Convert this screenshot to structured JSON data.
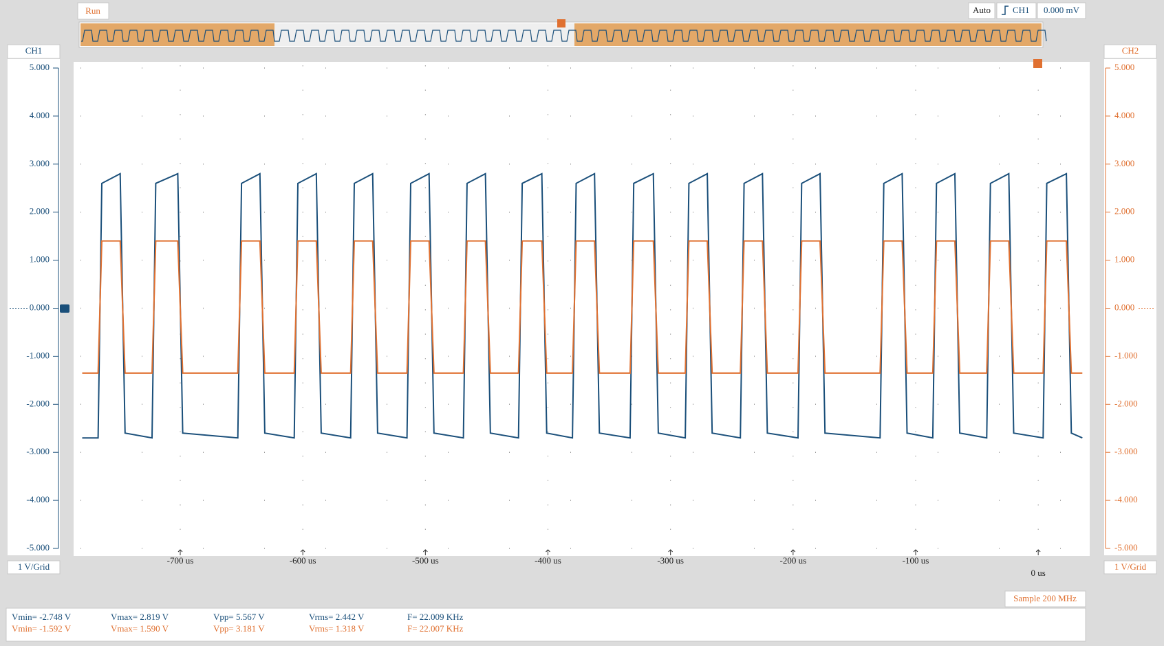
{
  "status": "Run",
  "trigger": {
    "mode": "Auto",
    "source": "CH1",
    "level": "0.000 mV"
  },
  "sample": "Sample 200 MHz",
  "scale_labels": [
    "1 V/Grid",
    "1 V/Grid"
  ],
  "measurements": [
    [
      "Vmin= -2.748 V",
      "Vmax= 2.819 V",
      "Vpp= 5.567 V",
      "Vrms= 2.442 V",
      "F= 22.009 KHz"
    ],
    [
      "Vmin= -1.592 V",
      "Vmax= 1.590 V",
      "Vpp= 3.181 V",
      "Vrms= 1.318 V",
      "F= 22.007 KHz"
    ]
  ],
  "chart_data": {
    "type": "line",
    "x": [
      -780,
      -767,
      -764,
      -749,
      -745,
      -723,
      -720,
      -702,
      -698,
      -653,
      -650,
      -635,
      -631,
      -607,
      -604,
      -589,
      -585,
      -561,
      -558,
      -543,
      -539,
      -515,
      -512,
      -497,
      -493,
      -469,
      -466,
      -451,
      -447,
      -424,
      -421,
      -405,
      -401,
      -380,
      -377,
      -362,
      -358,
      -333,
      -330,
      -314,
      -310,
      -288,
      -285,
      -270,
      -266,
      -243,
      -240,
      -225,
      -221,
      -196,
      -193,
      -178,
      -174,
      -129,
      -126,
      -111,
      -107,
      -86,
      -83,
      -68,
      -64,
      -42,
      -39,
      -24,
      -20,
      4,
      7,
      23,
      27,
      36
    ],
    "series": [
      {
        "name": "CH1",
        "color": "#1a4f7a",
        "values": [
          -2.7,
          -2.7,
          2.6,
          2.8,
          -2.6,
          -2.7,
          2.6,
          2.8,
          -2.6,
          -2.7,
          2.6,
          2.8,
          -2.6,
          -2.7,
          2.6,
          2.8,
          -2.6,
          -2.7,
          2.6,
          2.8,
          -2.6,
          -2.7,
          2.6,
          2.8,
          -2.6,
          -2.7,
          2.6,
          2.8,
          -2.6,
          -2.7,
          2.6,
          2.8,
          -2.6,
          -2.7,
          2.6,
          2.8,
          -2.6,
          -2.7,
          2.6,
          2.8,
          -2.6,
          -2.7,
          2.6,
          2.8,
          -2.6,
          -2.7,
          2.6,
          2.8,
          -2.6,
          -2.7,
          2.6,
          2.8,
          -2.6,
          -2.7,
          2.6,
          2.8,
          -2.6,
          -2.7,
          2.6,
          2.8,
          -2.6,
          -2.7,
          2.6,
          2.8,
          -2.6,
          -2.7,
          2.6,
          2.8,
          -2.6,
          -2.7
        ]
      },
      {
        "name": "CH2",
        "color": "#e07030",
        "axis": "y2",
        "values": [
          -1.35,
          -1.35,
          1.4,
          1.4,
          -1.35,
          -1.35,
          1.4,
          1.4,
          -1.35,
          -1.35,
          1.4,
          1.4,
          -1.35,
          -1.35,
          1.4,
          1.4,
          -1.35,
          -1.35,
          1.4,
          1.4,
          -1.35,
          -1.35,
          1.4,
          1.4,
          -1.35,
          -1.35,
          1.4,
          1.4,
          -1.35,
          -1.35,
          1.4,
          1.4,
          -1.35,
          -1.35,
          1.4,
          1.4,
          -1.35,
          -1.35,
          1.4,
          1.4,
          -1.35,
          -1.35,
          1.4,
          1.4,
          -1.35,
          -1.35,
          1.4,
          1.4,
          -1.35,
          -1.35,
          1.4,
          1.4,
          -1.35,
          -1.35,
          1.4,
          1.4,
          -1.35,
          -1.35,
          1.4,
          1.4,
          -1.35,
          -1.35,
          1.4,
          1.4,
          -1.35,
          -1.35,
          1.4,
          1.4,
          -1.35,
          -1.35
        ]
      }
    ],
    "xlim": [
      -787,
      42
    ],
    "xticks": [
      {
        "value": -700,
        "label": "-700 us"
      },
      {
        "value": -600,
        "label": "-600 us"
      },
      {
        "value": -500,
        "label": "-500 us"
      },
      {
        "value": -400,
        "label": "-400 us"
      },
      {
        "value": -300,
        "label": "-300 us"
      },
      {
        "value": -200,
        "label": "-200 us"
      },
      {
        "value": -100,
        "label": "-100 us"
      },
      {
        "value": 0,
        "label": "0 us"
      }
    ],
    "ylim": [
      -5,
      5
    ],
    "yticks": [
      {
        "value": 5,
        "label": "5.000"
      },
      {
        "value": 4,
        "label": "4.000"
      },
      {
        "value": 3,
        "label": "3.000"
      },
      {
        "value": 2,
        "label": "2.000"
      },
      {
        "value": 1,
        "label": "1.000"
      },
      {
        "value": 0,
        "label": "0.000"
      },
      {
        "value": -1,
        "label": "-1.000"
      },
      {
        "value": -2,
        "label": "-2.000"
      },
      {
        "value": -3,
        "label": "-3.000"
      },
      {
        "value": -4,
        "label": "-4.000"
      },
      {
        "value": -5,
        "label": "-5.000"
      }
    ],
    "y2lim": [
      -5,
      5
    ],
    "y2ticks": [
      {
        "value": 5,
        "label": "5.000"
      },
      {
        "value": 4,
        "label": "4.000"
      },
      {
        "value": 3,
        "label": "3.000"
      },
      {
        "value": 2,
        "label": "2.000"
      },
      {
        "value": 1,
        "label": "1.000"
      },
      {
        "value": 0,
        "label": "0.000"
      },
      {
        "value": -1,
        "label": "-1.000"
      },
      {
        "value": -2,
        "label": "-2.000"
      },
      {
        "value": -3,
        "label": "-3.000"
      },
      {
        "value": -4,
        "label": "-4.000"
      },
      {
        "value": -5,
        "label": "-5.000"
      }
    ],
    "grid": true
  }
}
